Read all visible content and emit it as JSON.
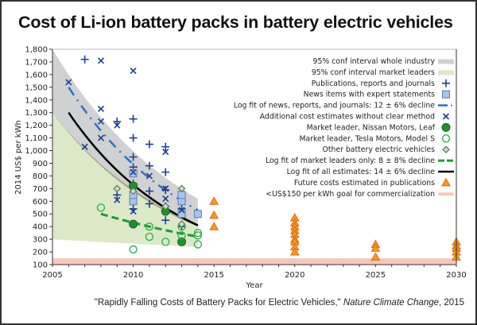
{
  "chart_data": {
    "type": "scatter",
    "title": "Cost of Li-ion battery packs in battery electric vehicles",
    "xlabel": "Year",
    "ylabel": "2014 US$ per kWh",
    "xlim": [
      2005,
      2030
    ],
    "ylim": [
      100,
      1800
    ],
    "xticks": [
      "2005",
      "2010",
      "2015",
      "2020",
      "2025",
      "2030"
    ],
    "yticks": [
      "100",
      "200",
      "300",
      "400",
      "500",
      "600",
      "700",
      "800",
      "900",
      "1,000",
      "1,100",
      "1,200",
      "1,300",
      "1,400",
      "1,500",
      "1,600",
      "1,700",
      "1,800"
    ],
    "legend_position": "top-right",
    "legend": [
      {
        "label": "95% conf interval whole industry",
        "marker": "band-gray",
        "color": "#d0d1d3"
      },
      {
        "label": "95% conf interval market leaders",
        "marker": "band-green",
        "color": "#dce9c8"
      },
      {
        "label": "Publications, reports and journals",
        "marker": "plus",
        "color": "#1f3f8f"
      },
      {
        "label": "News items with expert statements",
        "marker": "square",
        "color": "#a9c4e6"
      },
      {
        "label": "Log fit of news, reports, and journals: 12 ± 6% decline",
        "marker": "dashdot",
        "color": "#2f6fbf"
      },
      {
        "label": "Additional cost estimates without clear method",
        "marker": "x",
        "color": "#1f3f8f"
      },
      {
        "label": "Market leader, Nissan Motors, Leaf",
        "marker": "filled-circle",
        "color": "#1f8f2f"
      },
      {
        "label": "Market leader, Tesla Motors, Model S",
        "marker": "open-circle",
        "color": "#2fb04f"
      },
      {
        "label": "Other battery electric vehicles",
        "marker": "diamond",
        "color": "#6a7a3a"
      },
      {
        "label": "Log fit of market leaders only: 8 ± 8% decline",
        "marker": "dash-green",
        "color": "#1e9a3a"
      },
      {
        "label": "Log fit of all estimates: 14 ± 6% decline",
        "marker": "line-black",
        "color": "#000000"
      },
      {
        "label": "Future costs estimated in publications",
        "marker": "triangle",
        "color": "#f39a1c"
      },
      {
        "label": "<US$150 per kWh goal for commercialization",
        "marker": "band-pink",
        "color": "#f8c7bc"
      }
    ],
    "series": [
      {
        "name": "Publications, reports and journals",
        "points": [
          [
            2007,
            1720
          ],
          [
            2009,
            1230
          ],
          [
            2010,
            1250
          ],
          [
            2010,
            1100
          ],
          [
            2011,
            1050
          ],
          [
            2010,
            950
          ],
          [
            2011,
            880
          ],
          [
            2012,
            1030
          ],
          [
            2010,
            870
          ],
          [
            2012,
            830
          ],
          [
            2010,
            740
          ],
          [
            2011,
            680
          ],
          [
            2012,
            690
          ],
          [
            2009,
            650
          ],
          [
            2011,
            580
          ],
          [
            2012,
            560
          ],
          [
            2013,
            540
          ],
          [
            2010,
            540
          ],
          [
            2012,
            450
          ],
          [
            2013,
            400
          ]
        ]
      },
      {
        "name": "News items with expert statements",
        "points": [
          [
            2010,
            820
          ],
          [
            2010,
            600
          ],
          [
            2013,
            600
          ],
          [
            2013,
            500
          ],
          [
            2014,
            500
          ],
          [
            2010,
            650
          ],
          [
            2013,
            650
          ]
        ]
      },
      {
        "name": "Additional cost estimates without clear method",
        "points": [
          [
            2006,
            1540
          ],
          [
            2008,
            1710
          ],
          [
            2010,
            1630
          ],
          [
            2008,
            1330
          ],
          [
            2008,
            1230
          ],
          [
            2009,
            1200
          ],
          [
            2007,
            1030
          ],
          [
            2008,
            1100
          ],
          [
            2012,
            990
          ],
          [
            2010,
            830
          ],
          [
            2011,
            800
          ],
          [
            2009,
            610
          ],
          [
            2010,
            520
          ],
          [
            2010,
            700
          ],
          [
            2012,
            620
          ],
          [
            2013,
            530
          ],
          [
            2012,
            700
          ]
        ]
      },
      {
        "name": "Market leader, Nissan Motors, Leaf",
        "points": [
          [
            2010,
            720
          ],
          [
            2010,
            420
          ],
          [
            2012,
            520
          ],
          [
            2013,
            280
          ]
        ]
      },
      {
        "name": "Market leader, Tesla Motors, Model S",
        "points": [
          [
            2008,
            550
          ],
          [
            2010,
            220
          ],
          [
            2011,
            400
          ],
          [
            2011,
            320
          ],
          [
            2012,
            280
          ],
          [
            2013,
            400
          ],
          [
            2013,
            330
          ],
          [
            2014,
            350
          ],
          [
            2014,
            330
          ],
          [
            2014,
            260
          ]
        ]
      },
      {
        "name": "Other battery electric vehicles",
        "points": [
          [
            2009,
            700
          ],
          [
            2010,
            680
          ],
          [
            2012,
            560
          ],
          [
            2013,
            700
          ],
          [
            2013,
            420
          ]
        ]
      },
      {
        "name": "Future costs estimated in publications",
        "points": [
          [
            2015,
            600
          ],
          [
            2015,
            490
          ],
          [
            2015,
            400
          ],
          [
            2020,
            470
          ],
          [
            2020,
            430
          ],
          [
            2020,
            400
          ],
          [
            2020,
            370
          ],
          [
            2020,
            340
          ],
          [
            2020,
            300
          ],
          [
            2020,
            280
          ],
          [
            2020,
            240
          ],
          [
            2020,
            200
          ],
          [
            2025,
            260
          ],
          [
            2025,
            230
          ],
          [
            2025,
            160
          ],
          [
            2030,
            280
          ],
          [
            2030,
            250
          ],
          [
            2030,
            230
          ],
          [
            2030,
            200
          ],
          [
            2030,
            160
          ]
        ]
      }
    ],
    "fits": [
      {
        "name": "Log fit of all estimates",
        "decline": "14 ± 6%",
        "x": [
          2006,
          2014
        ],
        "y": [
          1300,
          410
        ]
      },
      {
        "name": "Log fit of news, reports, and journals",
        "decline": "12 ± 6%",
        "x": [
          2006,
          2014
        ],
        "y": [
          1500,
          530
        ]
      },
      {
        "name": "Log fit of market leaders only",
        "decline": "8 ± 8%",
        "x": [
          2008,
          2014
        ],
        "y": [
          500,
          320
        ]
      }
    ],
    "bands": [
      {
        "name": "95% conf interval whole industry",
        "x": [
          2005,
          2014
        ],
        "upper": [
          1800,
          620
        ],
        "lower": [
          1300,
          400
        ]
      },
      {
        "name": "95% conf interval market leaders",
        "x": [
          2005,
          2014
        ],
        "upper": [
          1300,
          420
        ],
        "lower": [
          300,
          240
        ]
      },
      {
        "name": "<US$150 per kWh goal for commercialization",
        "range": [
          100,
          150
        ]
      }
    ]
  },
  "citation": {
    "prefix": "\"Rapidly Falling Costs of Battery Packs for Electric Vehicles,\" ",
    "journal": "Nature Climate Change",
    "suffix": ", 2015"
  }
}
